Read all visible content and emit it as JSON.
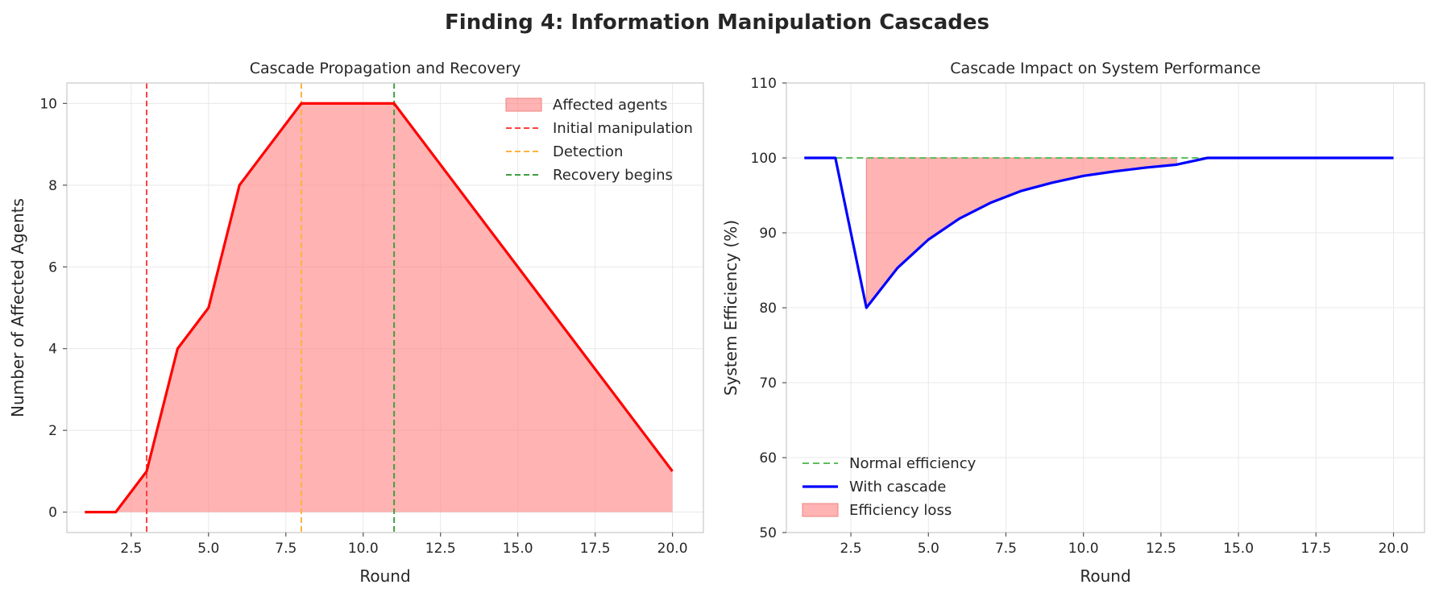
{
  "figure": {
    "title": "Finding 4: Information Manipulation Cascades"
  },
  "chart_data": [
    {
      "type": "area",
      "title": "Cascade Propagation and Recovery",
      "xlabel": "Round",
      "ylabel": "Number of Affected Agents",
      "xlim": [
        0.42,
        21.0
      ],
      "ylim": [
        -0.5,
        10.5
      ],
      "xticks": [
        2.5,
        5.0,
        7.5,
        10.0,
        12.5,
        15.0,
        17.5,
        20.0
      ],
      "xtick_labels": [
        "2.5",
        "5.0",
        "7.5",
        "10.0",
        "12.5",
        "15.0",
        "17.5",
        "20.0"
      ],
      "yticks": [
        0,
        2,
        4,
        6,
        8,
        10
      ],
      "ytick_labels": [
        "0",
        "2",
        "4",
        "6",
        "8",
        "10"
      ],
      "grid": true,
      "legend_position": "top-right",
      "series": [
        {
          "name": "Affected agents",
          "x": [
            1,
            2,
            3,
            4,
            5,
            6,
            7,
            8,
            9,
            10,
            11,
            12,
            13,
            14,
            15,
            16,
            17,
            18,
            19,
            20
          ],
          "values": [
            0,
            0,
            1,
            4,
            5,
            8,
            9,
            10,
            10,
            10,
            10,
            9,
            8,
            7,
            6,
            5,
            4,
            3,
            2,
            1
          ],
          "line_color": "#ff0000",
          "fill_color": "#ff8080"
        }
      ],
      "vlines": [
        {
          "name": "Initial manipulation",
          "x": 3,
          "color": "#ff4040"
        },
        {
          "name": "Detection",
          "x": 8,
          "color": "#ffb23f"
        },
        {
          "name": "Recovery begins",
          "x": 11,
          "color": "#3f9f3f"
        }
      ]
    },
    {
      "type": "line",
      "title": "Cascade Impact on System Performance",
      "xlabel": "Round",
      "ylabel": "System Efficiency (%)",
      "xlim": [
        0.42,
        21.0
      ],
      "ylim": [
        50,
        110
      ],
      "xticks": [
        2.5,
        5.0,
        7.5,
        10.0,
        12.5,
        15.0,
        17.5,
        20.0
      ],
      "xtick_labels": [
        "2.5",
        "5.0",
        "7.5",
        "10.0",
        "12.5",
        "15.0",
        "17.5",
        "20.0"
      ],
      "yticks": [
        50,
        60,
        70,
        80,
        90,
        100,
        110
      ],
      "ytick_labels": [
        "50",
        "60",
        "70",
        "80",
        "90",
        "100",
        "110"
      ],
      "grid": true,
      "legend_position": "bottom-left",
      "series": [
        {
          "name": "Normal efficiency",
          "x": [
            1,
            14
          ],
          "values": [
            100,
            100
          ],
          "color": "#5cbf5c",
          "style": "dashed"
        },
        {
          "name": "With cascade",
          "x": [
            1,
            2,
            3,
            4,
            5,
            6,
            7,
            8,
            9,
            10,
            11,
            12,
            13,
            14,
            15,
            16,
            17,
            18,
            19,
            20
          ],
          "values": [
            100,
            100,
            80,
            85.3,
            89.1,
            91.9,
            94.0,
            95.6,
            96.7,
            97.6,
            98.2,
            98.7,
            99.1,
            100,
            100,
            100,
            100,
            100,
            100,
            100
          ],
          "color": "#0000ff",
          "style": "solid"
        }
      ],
      "fill_between": {
        "name": "Efficiency loss",
        "x_from": 3,
        "x_to": 13,
        "upper": 100,
        "color": "#ff8080"
      }
    }
  ]
}
